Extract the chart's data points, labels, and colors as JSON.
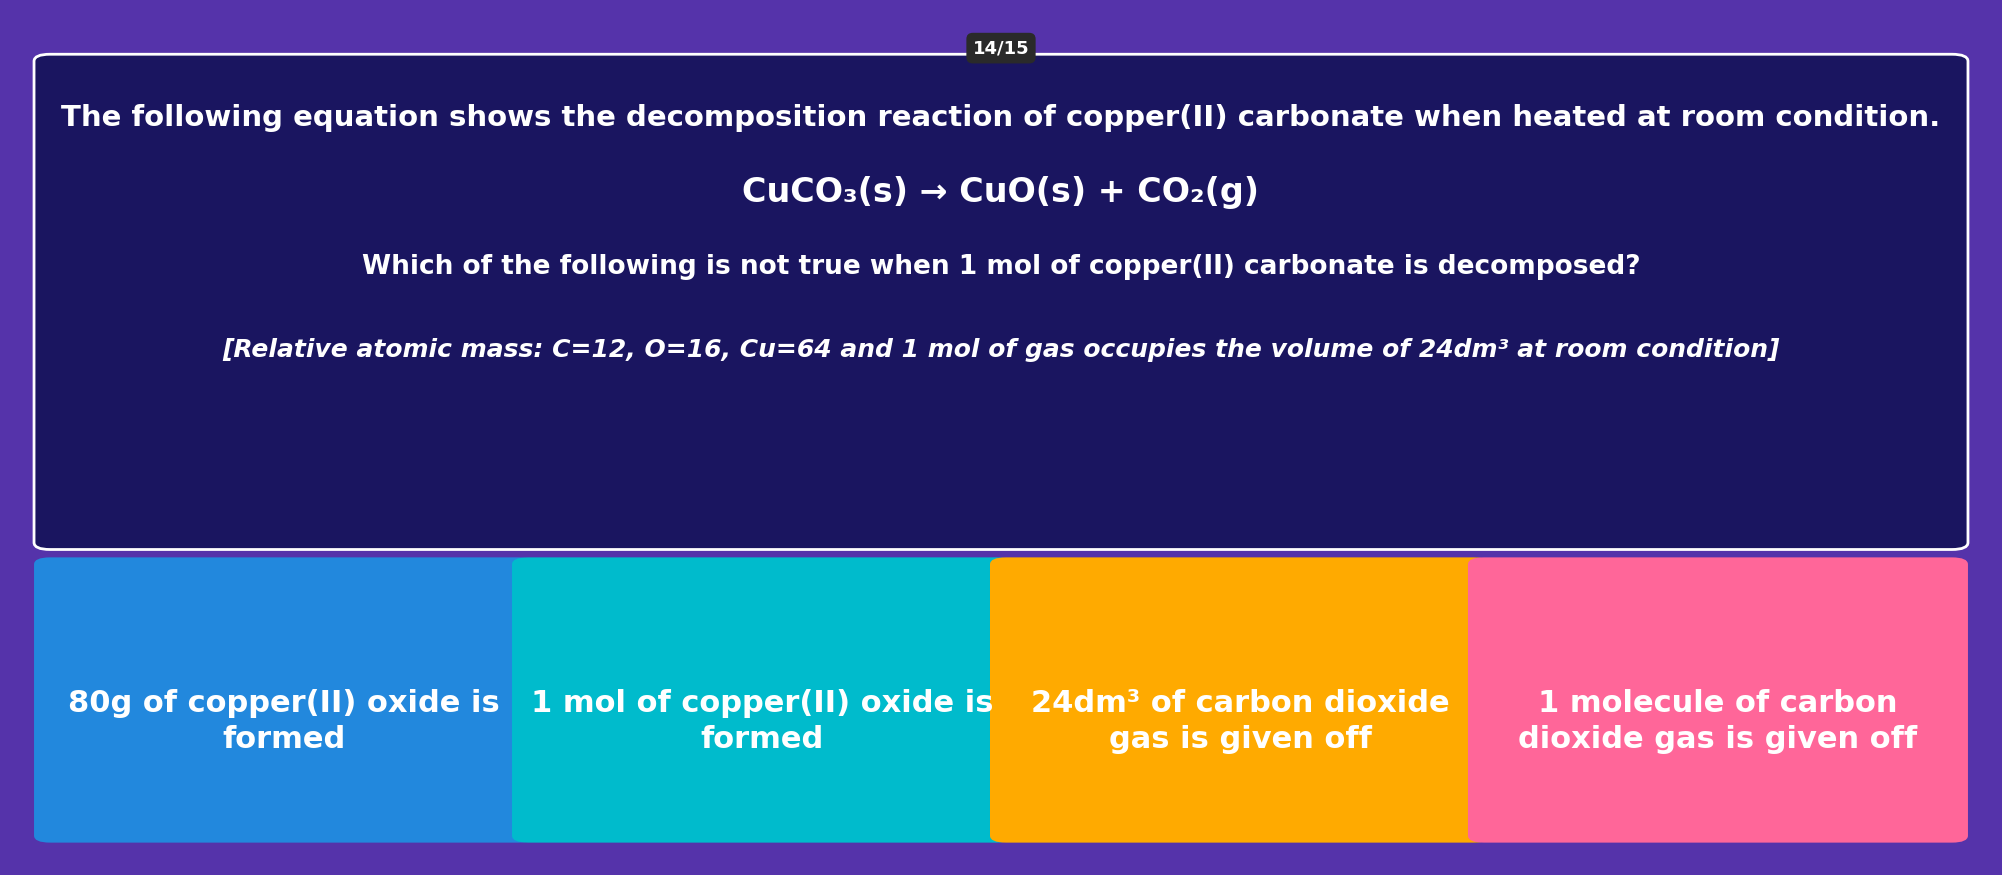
{
  "bg_color": "#5533aa",
  "question_box_color": "#1a1560",
  "question_box_border": "#ffffff",
  "badge_text": "14/15",
  "badge_bg": "#2a2a2a",
  "badge_text_color": "#ffffff",
  "line1": "The following equation shows the decomposition reaction of copper(II) carbonate when heated at room condition.",
  "line2": "CuCO₃(s) → CuO(s) + CO₂(g)",
  "line3": "Which of the following is not true when 1 mol of copper(II) carbonate is decomposed?",
  "line4": "[Relative atomic mass: C=12, O=16, Cu=64 and 1 mol of gas occupies the volume of 24dm³ at room condition]",
  "options": [
    {
      "text": "80g of copper(II) oxide is\nformed",
      "color": "#2288dd"
    },
    {
      "text": "1 mol of copper(II) oxide is\nformed",
      "color": "#00bbcc"
    },
    {
      "text": "24dm³ of carbon dioxide\ngas is given off",
      "color": "#ffaa00"
    },
    {
      "text": "1 molecule of carbon\ndioxide gas is given off",
      "color": "#ff6699"
    }
  ],
  "text_color": "#ffffff",
  "title_fontsize": 21,
  "equation_fontsize": 24,
  "question_fontsize": 19,
  "hint_fontsize": 18,
  "option_fontsize": 22,
  "badge_fontsize": 13
}
